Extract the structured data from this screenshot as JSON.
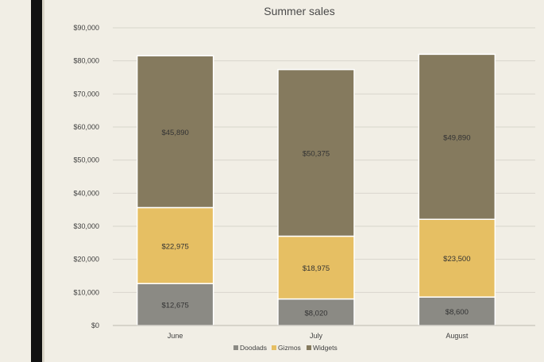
{
  "chart_data": {
    "type": "bar",
    "stacked": true,
    "title": "Summer sales",
    "xlabel": "",
    "ylabel": "",
    "categories": [
      "June",
      "July",
      "August"
    ],
    "series": [
      {
        "name": "Doodads",
        "values": [
          12675,
          8020,
          8600
        ],
        "labels": [
          "$12,675",
          "$8,020",
          "$8,600"
        ],
        "color": "#8b8a84"
      },
      {
        "name": "Gizmos",
        "values": [
          22975,
          18975,
          23500
        ],
        "labels": [
          "$22,975",
          "$18,975",
          "$23,500"
        ],
        "color": "#e6bf63"
      },
      {
        "name": "Widgets",
        "values": [
          45890,
          50375,
          49890
        ],
        "labels": [
          "$45,890",
          "$50,375",
          "$49,890"
        ],
        "color": "#857a5e"
      }
    ],
    "ylim": [
      0,
      90000
    ],
    "y_ticks": [
      0,
      10000,
      20000,
      30000,
      40000,
      50000,
      60000,
      70000,
      80000,
      90000
    ],
    "y_tick_labels": [
      "$0",
      "$10,000",
      "$20,000",
      "$30,000",
      "$40,000",
      "$50,000",
      "$60,000",
      "$70,000",
      "$80,000",
      "$90,000"
    ],
    "grid": true,
    "legend_position": "bottom"
  }
}
